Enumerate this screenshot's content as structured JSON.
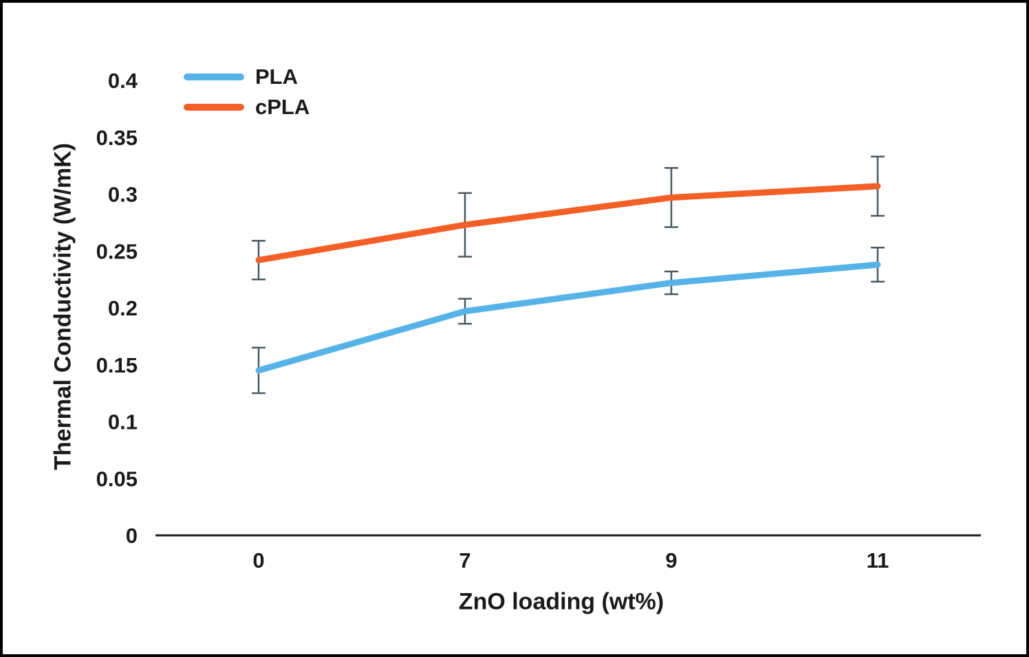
{
  "chart_data": {
    "type": "line",
    "title": "",
    "xlabel": "ZnO loading (wt%)",
    "ylabel": "Thermal Conductivity (W/mK)",
    "categories": [
      "0",
      "7",
      "9",
      "11"
    ],
    "ylim": [
      0,
      0.4
    ],
    "yticks": [
      0,
      0.05,
      0.1,
      0.15,
      0.2,
      0.25,
      0.3,
      0.35,
      0.4
    ],
    "grid": false,
    "legend_position": "top-left",
    "error_bar_color": "#455a64",
    "axis_color": "#1a1a1a",
    "series": [
      {
        "name": "PLA",
        "color": "#55b3e8",
        "values": [
          0.145,
          0.197,
          0.222,
          0.238
        ],
        "errors": [
          0.02,
          0.011,
          0.01,
          0.015
        ]
      },
      {
        "name": "cPLA",
        "color": "#f45f26",
        "values": [
          0.242,
          0.273,
          0.297,
          0.307
        ],
        "errors": [
          0.017,
          0.028,
          0.026,
          0.026
        ]
      }
    ]
  }
}
